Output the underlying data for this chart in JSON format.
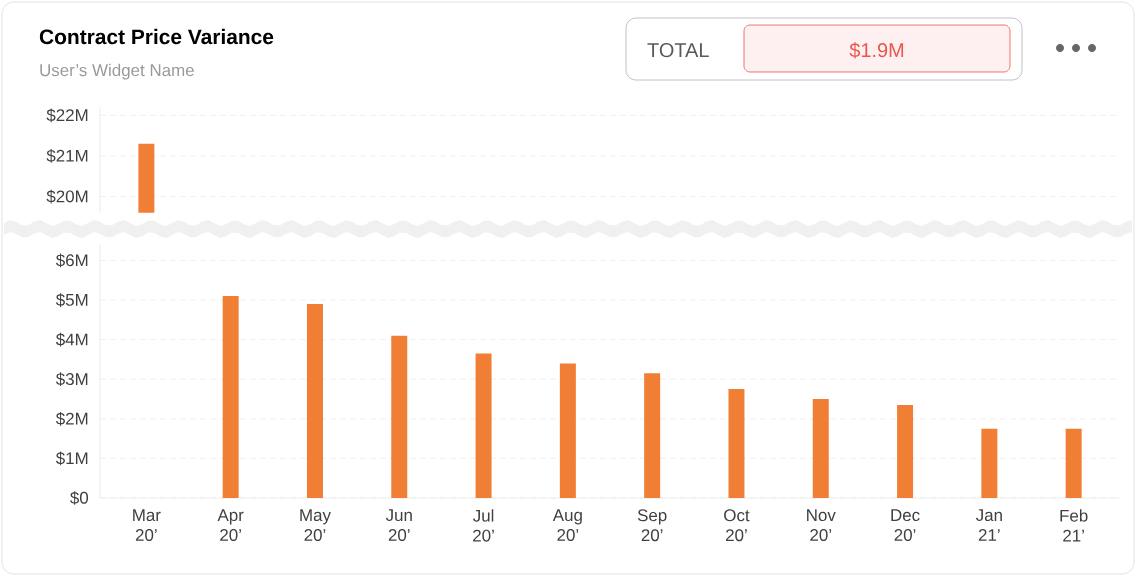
{
  "chart_data": [
    {
      "type": "bar",
      "title": "Contract Price Variance",
      "subtitle": "User’s Widget Name",
      "annotations": [
        "TOTAL",
        "$1.9M"
      ],
      "values": [
        21.3,
        null,
        null,
        null,
        null,
        null,
        null,
        null,
        null,
        null,
        null,
        null
      ],
      "color": "#f07f35",
      "ylim": [
        19.6,
        22.2
      ],
      "yticks": [
        {
          "value": 20,
          "label": "$20M"
        },
        {
          "value": 21,
          "label": "$21M"
        },
        {
          "value": 22,
          "label": "$22M"
        }
      ],
      "grid": "y",
      "tick_labels": "y"
    },
    {
      "type": "bar",
      "categories": [
        "Mar 20’",
        "Apr 20’",
        "May 20’",
        "Jun 20’",
        "Jul 20’",
        "Aug 20’",
        "Sep 20’",
        "Oct 20’",
        "Nov 20’",
        "Dec 20’",
        "Jan 21’",
        "Feb 21’"
      ],
      "values": [
        null,
        5.1,
        4.9,
        4.1,
        3.65,
        3.4,
        3.15,
        2.75,
        2.5,
        2.35,
        1.75,
        1.75
      ],
      "color": "#f07f35",
      "ylim": [
        0,
        6.4
      ],
      "yticks": [
        {
          "value": 0,
          "label": "$0"
        },
        {
          "value": 1,
          "label": "$1M"
        },
        {
          "value": 2,
          "label": "$2M"
        },
        {
          "value": 3,
          "label": "$3M"
        },
        {
          "value": 4,
          "label": "$4M"
        },
        {
          "value": 5,
          "label": "$5M"
        },
        {
          "value": 6,
          "label": "$6M"
        }
      ],
      "grid": "y"
    }
  ]
}
